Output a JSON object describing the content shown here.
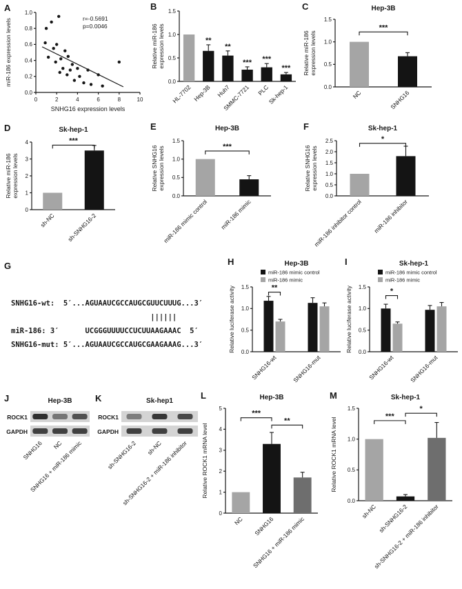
{
  "palette": {
    "gray": "#a5a5a5",
    "black": "#141414",
    "darkgray": "#6e6e6e",
    "blot_bg": "#d4d4d4",
    "band": "#262626"
  },
  "chart_data": [
    {
      "label": "A",
      "type": "scatter",
      "xlabel": "SNHG16 expression levels",
      "ylabel": [
        "miR-186 expression levels"
      ],
      "xlim": [
        0,
        10
      ],
      "xticks": [
        {
          "v": 0,
          "l": "0"
        },
        {
          "v": 2,
          "l": "2"
        },
        {
          "v": 4,
          "l": "4"
        },
        {
          "v": 6,
          "l": "6"
        },
        {
          "v": 8,
          "l": "8"
        },
        {
          "v": 10,
          "l": "10"
        }
      ],
      "ylim": [
        0,
        1.0
      ],
      "yticks": [
        {
          "v": 0,
          "l": "0.0"
        },
        {
          "v": 0.2,
          "l": "0.2"
        },
        {
          "v": 0.4,
          "l": "0.4"
        },
        {
          "v": 0.6,
          "l": "0.6"
        },
        {
          "v": 0.8,
          "l": "0.8"
        },
        {
          "v": 1.0,
          "l": "1.0"
        }
      ],
      "annotation": [
        "r=-0.5691",
        "p=0.0046"
      ],
      "points": [
        [
          0.9,
          0.62
        ],
        [
          1.0,
          0.8
        ],
        [
          1.2,
          0.44
        ],
        [
          1.5,
          0.88
        ],
        [
          1.7,
          0.55
        ],
        [
          1.9,
          0.38
        ],
        [
          2.0,
          0.6
        ],
        [
          2.2,
          0.95
        ],
        [
          2.3,
          0.25
        ],
        [
          2.4,
          0.42
        ],
        [
          2.6,
          0.3
        ],
        [
          2.8,
          0.52
        ],
        [
          3.0,
          0.22
        ],
        [
          3.1,
          0.45
        ],
        [
          3.3,
          0.28
        ],
        [
          3.5,
          0.35
        ],
        [
          3.7,
          0.15
        ],
        [
          4.0,
          0.3
        ],
        [
          4.2,
          0.2
        ],
        [
          4.6,
          0.12
        ],
        [
          5.0,
          0.28
        ],
        [
          5.3,
          0.1
        ],
        [
          6.0,
          0.22
        ],
        [
          6.4,
          0.08
        ],
        [
          8.0,
          0.38
        ]
      ],
      "regline": {
        "x1": 0.6,
        "y1": 0.57,
        "x2": 8.4,
        "y2": 0.07
      }
    },
    {
      "label": "B",
      "type": "bar",
      "ylabel": [
        "Relative miR-186",
        "expression levels"
      ],
      "ylim": [
        0,
        1.5
      ],
      "yticks": [
        {
          "v": 0,
          "l": "0.0"
        },
        {
          "v": 0.5,
          "l": "0.5"
        },
        {
          "v": 1.0,
          "l": "1.0"
        },
        {
          "v": 1.5,
          "l": "1.5"
        }
      ],
      "categories": [
        "HL-7702",
        "Hep-3B",
        "Huh7",
        "SMMC-7721",
        "PLC",
        "Sk-hep-1"
      ],
      "values": [
        1.0,
        0.65,
        0.55,
        0.25,
        0.3,
        0.15
      ],
      "errors": [
        0,
        0.13,
        0.1,
        0.06,
        0.08,
        0.04
      ],
      "colors": [
        "gray",
        "black",
        "black",
        "black",
        "black",
        "black"
      ],
      "sig": [
        "",
        "**",
        "**",
        "***",
        "***",
        "***"
      ]
    },
    {
      "label": "C",
      "type": "bar",
      "title": "Hep-3B",
      "ylabel": [
        "Relative miR-186",
        "expression levels"
      ],
      "ylim": [
        0,
        1.5
      ],
      "yticks": [
        {
          "v": 0,
          "l": "0.0"
        },
        {
          "v": 0.5,
          "l": "0.5"
        },
        {
          "v": 1.0,
          "l": "1.0"
        },
        {
          "v": 1.5,
          "l": "1.5"
        }
      ],
      "categories": [
        "NC",
        "SNHG16"
      ],
      "values": [
        1.0,
        0.68
      ],
      "errors": [
        0,
        0.08
      ],
      "colors": [
        "gray",
        "black"
      ],
      "brackets": [
        {
          "i1": 0,
          "i2": 1,
          "y": 1.22,
          "label": "***"
        }
      ]
    },
    {
      "label": "D",
      "type": "bar",
      "title": "Sk-hep-1",
      "ylabel": [
        "Relative miR-186",
        "expression levels"
      ],
      "ylim": [
        0,
        4
      ],
      "yticks": [
        {
          "v": 0,
          "l": "0"
        },
        {
          "v": 1,
          "l": "1"
        },
        {
          "v": 2,
          "l": "2"
        },
        {
          "v": 3,
          "l": "3"
        },
        {
          "v": 4,
          "l": "4"
        }
      ],
      "categories": [
        "sh-NC",
        "sh-SNHG16-2"
      ],
      "values": [
        1.0,
        3.5
      ],
      "errors": [
        0,
        0.3
      ],
      "colors": [
        "gray",
        "black"
      ],
      "brackets": [
        {
          "i1": 0,
          "i2": 1,
          "y": 3.82,
          "label": "***"
        }
      ]
    },
    {
      "label": "E",
      "type": "bar",
      "title": "Hep-3B",
      "ylabel": [
        "Relative SNHG16",
        "expression levels"
      ],
      "ylim": [
        0,
        1.5
      ],
      "yticks": [
        {
          "v": 0,
          "l": "0.0"
        },
        {
          "v": 0.5,
          "l": "0.5"
        },
        {
          "v": 1.0,
          "l": "1.0"
        },
        {
          "v": 1.5,
          "l": "1.5"
        }
      ],
      "categories": [
        "miR-186 mimic control",
        "miR-186 mimic"
      ],
      "values": [
        1.0,
        0.45
      ],
      "errors": [
        0,
        0.1
      ],
      "colors": [
        "gray",
        "black"
      ],
      "brackets": [
        {
          "i1": 0,
          "i2": 1,
          "y": 1.22,
          "label": "***"
        }
      ]
    },
    {
      "label": "F",
      "type": "bar",
      "title": "Sk-hep-1",
      "ylabel": [
        "Relative SNHG16",
        "expression levels"
      ],
      "ylim": [
        0,
        2.5
      ],
      "yticks": [
        {
          "v": 0,
          "l": "0.0"
        },
        {
          "v": 0.5,
          "l": "0.5"
        },
        {
          "v": 1.0,
          "l": "1.0"
        },
        {
          "v": 1.5,
          "l": "1.5"
        },
        {
          "v": 2.0,
          "l": "2.0"
        },
        {
          "v": 2.5,
          "l": "2.5"
        }
      ],
      "categories": [
        "miR-186 inhibitor control",
        "miR-186 inhibitor"
      ],
      "values": [
        1.0,
        1.8
      ],
      "errors": [
        0,
        0.45
      ],
      "colors": [
        "gray",
        "black"
      ],
      "brackets": [
        {
          "i1": 0,
          "i2": 1,
          "y": 2.38,
          "label": "*"
        }
      ]
    },
    {
      "label": "G",
      "type": "sequence",
      "lines": [
        "SNHG16-wt:  5′...AGUAAUCGCCAUGCGUUCUUUG...3′",
        "                                ||||||",
        "miR-186: 3′      UCGGGUUUUCCUCUUAAGAAAC  5′",
        "SNHG16-mut: 5′...AGUAAUCGCCAUGCGAAGAAAG...3′"
      ]
    },
    {
      "label": "H",
      "type": "groupbar",
      "title": "Hep-3B",
      "legend": true,
      "ylabel": [
        "Relative luciferase activity"
      ],
      "ylim": [
        0,
        1.5
      ],
      "yticks": [
        {
          "v": 0,
          "l": "0.0"
        },
        {
          "v": 0.5,
          "l": "0.5"
        },
        {
          "v": 1.0,
          "l": "1.0"
        },
        {
          "v": 1.5,
          "l": "1.5"
        }
      ],
      "categories": [
        "SNHG16-wt",
        "SNHG16-mut"
      ],
      "series": [
        {
          "name": "miR-186 mimic control",
          "color": "black",
          "values": [
            1.18,
            1.13
          ],
          "errors": [
            0.1,
            0.12
          ]
        },
        {
          "name": "miR-186 mimic",
          "color": "gray",
          "values": [
            0.7,
            1.05
          ],
          "errors": [
            0.05,
            0.08
          ]
        }
      ],
      "brackets": [
        {
          "cat": 0,
          "y": 1.38,
          "label": "**"
        }
      ]
    },
    {
      "label": "I",
      "type": "groupbar",
      "title": "Sk-hep-1",
      "legend": true,
      "ylabel": [
        "Relative luciferase activity"
      ],
      "ylim": [
        0,
        1.5
      ],
      "yticks": [
        {
          "v": 0,
          "l": "0.0"
        },
        {
          "v": 0.5,
          "l": "0.5"
        },
        {
          "v": 1.0,
          "l": "1.0"
        },
        {
          "v": 1.5,
          "l": "1.5"
        }
      ],
      "categories": [
        "SNHG16-wt",
        "SNHG16-mut"
      ],
      "series": [
        {
          "name": "miR-186 mimic control",
          "color": "black",
          "values": [
            1.0,
            0.97
          ],
          "errors": [
            0.1,
            0.1
          ]
        },
        {
          "name": "miR-186 mimic",
          "color": "gray",
          "values": [
            0.65,
            1.05
          ],
          "errors": [
            0.04,
            0.09
          ]
        }
      ],
      "brackets": [
        {
          "cat": 0,
          "y": 1.3,
          "label": "*"
        }
      ]
    },
    {
      "label": "J",
      "type": "blot",
      "title": "Hep-3B",
      "rows": [
        "ROCK1",
        "GAPDH"
      ],
      "lanes": [
        "SNHG16",
        "NC",
        "SNHG16 + miR-186 mimic"
      ],
      "bands": [
        [
          0.95,
          0.55,
          0.75
        ],
        [
          0.85,
          0.85,
          0.85
        ]
      ]
    },
    {
      "label": "K",
      "type": "blot",
      "title": "Sk-hep1",
      "rows": [
        "ROCK1",
        "GAPDH"
      ],
      "lanes": [
        "sh-SNHG16-2",
        "sh-NC",
        "sh-SNHG16-2 + miR-186 inhibitor"
      ],
      "bands": [
        [
          0.5,
          0.9,
          0.8
        ],
        [
          0.85,
          0.85,
          0.85
        ]
      ]
    },
    {
      "label": "L",
      "type": "bar",
      "title": "Hep-3B",
      "ylabel": [
        "Relative ROCK1 mRNA level"
      ],
      "ylim": [
        0,
        5
      ],
      "yticks": [
        {
          "v": 0,
          "l": "0"
        },
        {
          "v": 1,
          "l": "1"
        },
        {
          "v": 2,
          "l": "2"
        },
        {
          "v": 3,
          "l": "3"
        },
        {
          "v": 4,
          "l": "4"
        },
        {
          "v": 5,
          "l": "5"
        }
      ],
      "categories": [
        "NC",
        "SNHG16",
        "SNHG16 + miR-186 mimic"
      ],
      "values": [
        1.0,
        3.3,
        1.7
      ],
      "errors": [
        0,
        0.55,
        0.25
      ],
      "colors": [
        "gray",
        "black",
        "darkgray"
      ],
      "brackets": [
        {
          "i1": 0,
          "i2": 1,
          "y": 4.55,
          "label": "***"
        },
        {
          "i1": 1,
          "i2": 2,
          "y": 4.2,
          "label": "**"
        }
      ]
    },
    {
      "label": "M",
      "type": "bar",
      "title": "Sk-hep-1",
      "ylabel": [
        "Relative ROCK1 mRNA level"
      ],
      "ylim": [
        0,
        1.5
      ],
      "yticks": [
        {
          "v": 0,
          "l": "0.0"
        },
        {
          "v": 0.5,
          "l": "0.5"
        },
        {
          "v": 1.0,
          "l": "1.0"
        },
        {
          "v": 1.5,
          "l": "1.5"
        }
      ],
      "categories": [
        "sh-NC",
        "sh-SNHG16-2",
        "sh-SNHG16-2 + miR-186 inhibitor"
      ],
      "values": [
        1.0,
        0.07,
        1.02
      ],
      "errors": [
        0,
        0.03,
        0.25
      ],
      "colors": [
        "gray",
        "black",
        "darkgray"
      ],
      "brackets": [
        {
          "i1": 0,
          "i2": 1,
          "y": 1.3,
          "label": "***"
        },
        {
          "i1": 1,
          "i2": 2,
          "y": 1.42,
          "label": "*"
        }
      ]
    }
  ]
}
